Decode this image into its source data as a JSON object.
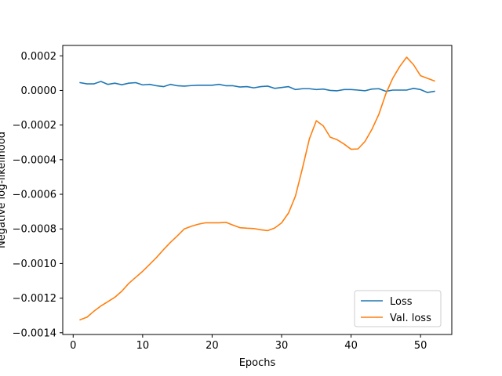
{
  "chart_data": {
    "type": "line",
    "title": "",
    "xlabel": "Epochs",
    "ylabel": "Negative log-likelihood",
    "xlim": [
      -1.5,
      54.5
    ],
    "ylim": [
      -0.00141,
      0.00026
    ],
    "xticks": [
      0,
      10,
      20,
      30,
      40,
      50
    ],
    "xtick_labels": [
      "0",
      "10",
      "20",
      "30",
      "40",
      "50"
    ],
    "yticks": [
      0.0002,
      0.0,
      -0.0002,
      -0.0004,
      -0.0006,
      -0.0008,
      -0.001,
      -0.0012,
      -0.0014
    ],
    "ytick_labels": [
      "0.0002",
      "0.0000",
      "−0.0002",
      "−0.0004",
      "−0.0006",
      "−0.0008",
      "−0.0010",
      "−0.0012",
      "−0.0014"
    ],
    "grid": false,
    "legend_position": "lower right",
    "x": [
      1,
      2,
      3,
      4,
      5,
      6,
      7,
      8,
      9,
      10,
      11,
      12,
      13,
      14,
      15,
      16,
      17,
      18,
      19,
      20,
      21,
      22,
      23,
      24,
      25,
      26,
      27,
      28,
      29,
      30,
      31,
      32,
      33,
      34,
      35,
      36,
      37,
      38,
      39,
      40,
      41,
      42,
      43,
      44,
      45,
      46,
      47,
      48,
      49,
      50,
      51,
      52
    ],
    "series": [
      {
        "name": "Loss",
        "color": "#1f77b4",
        "values": [
          4.5e-05,
          3.8e-05,
          3.8e-05,
          5.2e-05,
          3.5e-05,
          4.2e-05,
          3.3e-05,
          4.2e-05,
          4.5e-05,
          3.2e-05,
          3.5e-05,
          2.7e-05,
          2.2e-05,
          3.5e-05,
          2.7e-05,
          2.5e-05,
          2.8e-05,
          3e-05,
          3e-05,
          3e-05,
          3.5e-05,
          2.7e-05,
          2.7e-05,
          2e-05,
          2.2e-05,
          1.5e-05,
          2.2e-05,
          2.5e-05,
          1.2e-05,
          1.7e-05,
          2.2e-05,
          5e-06,
          1e-05,
          1e-05,
          5e-06,
          8e-06,
          0.0,
          -2e-06,
          5e-06,
          5e-06,
          2e-06,
          -2e-06,
          8e-06,
          1e-05,
          -5e-06,
          2e-06,
          2e-06,
          2e-06,
          1.2e-05,
          5e-06,
          -1.2e-05,
          -5e-06
        ]
      },
      {
        "name": "Val. loss",
        "color": "#ff7f0e",
        "values": [
          -0.001325,
          -0.00131,
          -0.001275,
          -0.001245,
          -0.00122,
          -0.001195,
          -0.00116,
          -0.001115,
          -0.00108,
          -0.001045,
          -0.001005,
          -0.000965,
          -0.00092,
          -0.000878,
          -0.00084,
          -0.0008,
          -0.000785,
          -0.000773,
          -0.000765,
          -0.000765,
          -0.000765,
          -0.000762,
          -0.000778,
          -0.000793,
          -0.000796,
          -0.000798,
          -0.000805,
          -0.00081,
          -0.000795,
          -0.000765,
          -0.000708,
          -0.00061,
          -0.00045,
          -0.00028,
          -0.000175,
          -0.000205,
          -0.00027,
          -0.000285,
          -0.00031,
          -0.00034,
          -0.000338,
          -0.000295,
          -0.000225,
          -0.000138,
          -2e-05,
          7e-05,
          0.000138,
          0.000192,
          0.000148,
          8.5e-05,
          7e-05,
          5.5e-05
        ]
      }
    ]
  }
}
